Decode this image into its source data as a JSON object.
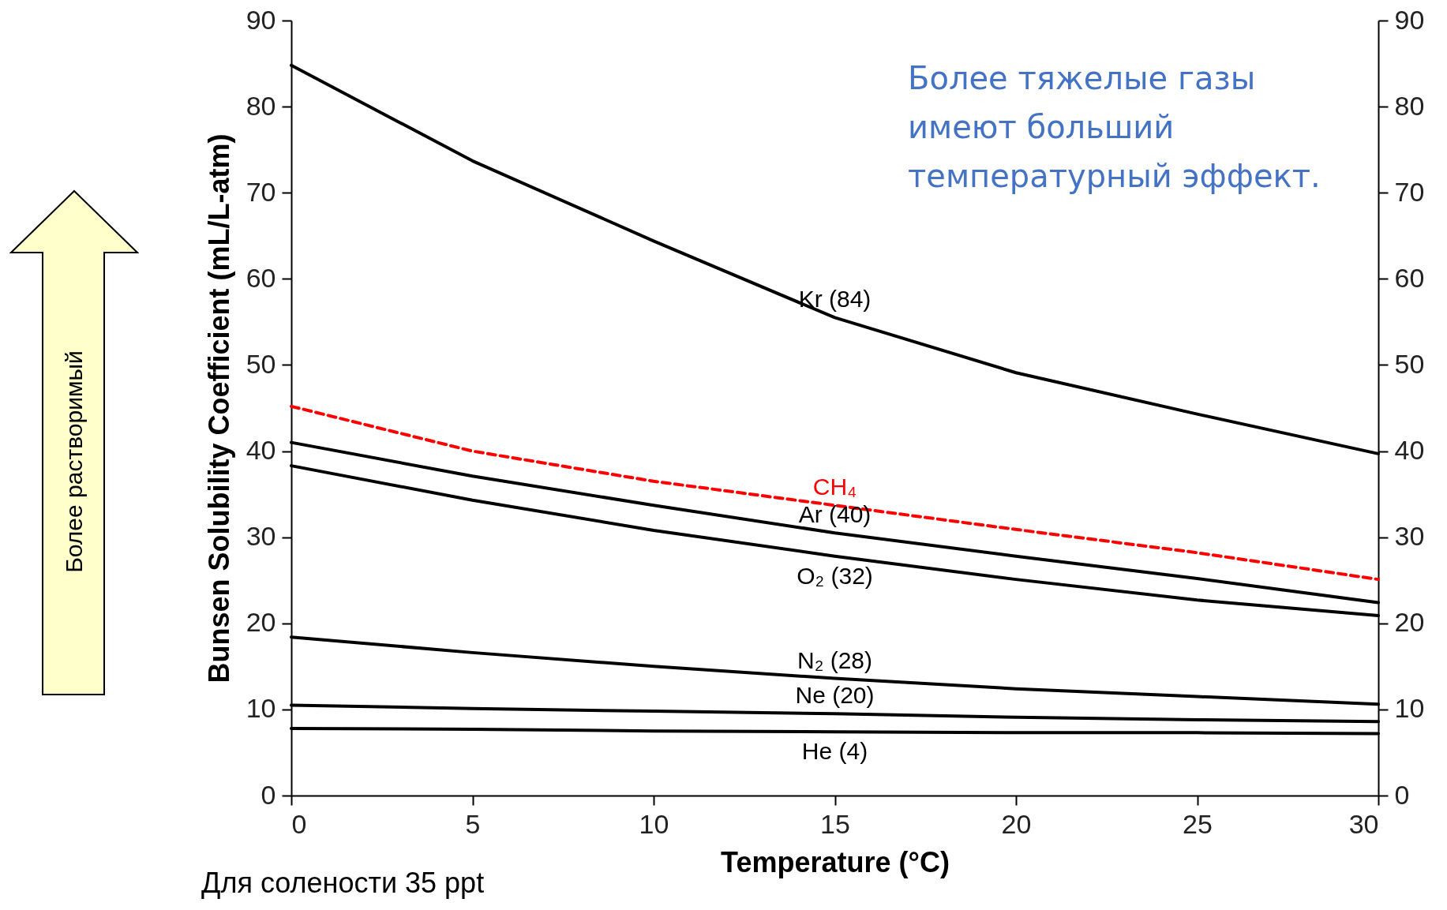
{
  "chart_data": {
    "type": "line",
    "xlabel": "Temperature (°C)",
    "ylabel": "Bunsen Solubility Coefficient (mL/L-atm)",
    "x": [
      0,
      5,
      10,
      15,
      20,
      25,
      30
    ],
    "series": [
      {
        "name": "Kr (84)",
        "color": "#000000",
        "values": [
          84.8,
          73.7,
          64.4,
          55.5,
          49.1,
          44.3,
          39.7
        ]
      },
      {
        "name": "Ar (40)",
        "color": "#000000",
        "values": [
          41.0,
          37.1,
          33.7,
          30.5,
          27.8,
          25.2,
          22.4
        ]
      },
      {
        "name": "O₂ (32)",
        "color": "#000000",
        "values": [
          38.3,
          34.3,
          30.8,
          27.8,
          25.1,
          22.7,
          20.9
        ]
      },
      {
        "name": "N₂ (28)",
        "color": "#000000",
        "values": [
          18.4,
          16.6,
          15.0,
          13.6,
          12.4,
          11.5,
          10.6
        ]
      },
      {
        "name": "Ne (20)",
        "color": "#000000",
        "values": [
          10.5,
          10.1,
          9.8,
          9.5,
          9.1,
          8.8,
          8.6
        ]
      },
      {
        "name": "He (4)",
        "color": "#000000",
        "values": [
          7.8,
          7.7,
          7.5,
          7.4,
          7.3,
          7.3,
          7.2
        ]
      },
      {
        "name": "CH₄",
        "color": "#ff0000",
        "line_style": "dashed",
        "values": [
          45.2,
          40.0,
          36.5,
          33.7,
          30.9,
          28.2,
          25.1
        ]
      }
    ],
    "xlim": [
      0,
      30
    ],
    "xticks": [
      0,
      5,
      10,
      15,
      20,
      25,
      30
    ],
    "ylim": [
      0,
      90
    ],
    "yticks": [
      0,
      10,
      20,
      30,
      40,
      50,
      60,
      70,
      80,
      90
    ],
    "y2lim": [
      0,
      90
    ],
    "y2ticks": [
      0,
      10,
      20,
      30,
      40,
      50,
      60,
      70,
      80,
      90
    ],
    "grid": false,
    "legend": false,
    "line_style": "solid",
    "annotations": [
      "Более тяжелые газы имеют больший температурный эффект.",
      "Более растворимый",
      "Для солености 35 ppt"
    ]
  }
}
